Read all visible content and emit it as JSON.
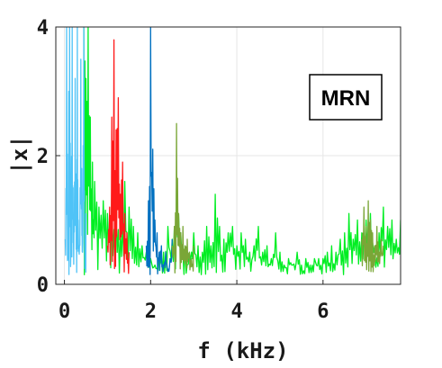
{
  "chart_data": {
    "type": "line",
    "title": "",
    "xlabel": "f (kHz)",
    "ylabel": "|x|",
    "xlim": [
      -0.2,
      7.8
    ],
    "ylim": [
      0,
      4
    ],
    "x_ticks": [
      0,
      2,
      4,
      6
    ],
    "y_ticks": [
      0,
      2,
      4
    ],
    "grid": true,
    "legend": "none",
    "annotation": "MRN",
    "series": [
      {
        "color": "#00ee22",
        "x": [
          0.45,
          0.5,
          0.55,
          0.6,
          0.65,
          0.7,
          0.8,
          0.9,
          1.0,
          1.1,
          1.2,
          1.3,
          1.4,
          1.5,
          1.6,
          1.7,
          1.8,
          1.9,
          2.0,
          2.1,
          2.2,
          2.3,
          2.4,
          2.5,
          2.6,
          2.7,
          2.8,
          2.9,
          3.0,
          3.1,
          3.2,
          3.3,
          3.4,
          3.5,
          3.6,
          3.7,
          3.8,
          3.9,
          4.0,
          4.1,
          4.2,
          4.3,
          4.4,
          4.5,
          4.6,
          4.7,
          4.8,
          4.9,
          5.0,
          5.1,
          5.2,
          5.3,
          5.4,
          5.5,
          5.6,
          5.7,
          5.8,
          5.9,
          6.0,
          6.1,
          6.2,
          6.3,
          6.4,
          6.5,
          6.6,
          6.7,
          6.8,
          6.9,
          7.0,
          7.1,
          7.2,
          7.3,
          7.4,
          7.5,
          7.6,
          7.7,
          7.8
        ],
        "values": [
          4.0,
          3.2,
          4.0,
          2.6,
          1.9,
          1.6,
          1.2,
          1.3,
          1.1,
          1.5,
          1.0,
          0.8,
          1.6,
          1.2,
          0.9,
          0.8,
          0.6,
          0.5,
          0.4,
          0.3,
          0.4,
          0.5,
          0.9,
          0.7,
          1.5,
          0.8,
          0.6,
          0.5,
          0.8,
          0.6,
          0.5,
          0.9,
          0.6,
          1.4,
          0.9,
          0.7,
          0.8,
          0.9,
          0.6,
          0.8,
          0.7,
          0.5,
          0.6,
          0.9,
          0.5,
          0.6,
          0.4,
          0.8,
          0.5,
          0.3,
          0.4,
          0.3,
          0.5,
          0.3,
          0.4,
          0.3,
          0.4,
          0.4,
          0.4,
          0.5,
          0.6,
          0.5,
          0.7,
          0.8,
          1.1,
          0.7,
          1.0,
          0.8,
          1.0,
          1.1,
          0.6,
          0.8,
          1.2,
          0.9,
          1.0,
          0.7,
          1.0
        ]
      },
      {
        "color": "#4fc3f7",
        "x": [
          0.02,
          0.05,
          0.08,
          0.1,
          0.12,
          0.15,
          0.18,
          0.2,
          0.22,
          0.25,
          0.28,
          0.3,
          0.32,
          0.35,
          0.38,
          0.4,
          0.42,
          0.45,
          0.48,
          0.5
        ],
        "values": [
          0.7,
          4.0,
          0.4,
          3.0,
          4.0,
          0.6,
          4.0,
          1.5,
          0.8,
          3.2,
          0.7,
          4.0,
          1.0,
          0.6,
          3.5,
          1.8,
          0.5,
          4.0,
          0.7,
          1.1
        ]
      },
      {
        "color": "#ff1a1a",
        "x": [
          1.0,
          1.05,
          1.1,
          1.15,
          1.2,
          1.25,
          1.3,
          1.35,
          1.4,
          1.45,
          1.5
        ],
        "values": [
          0.6,
          1.2,
          2.6,
          3.8,
          2.4,
          2.9,
          1.4,
          1.9,
          1.1,
          0.8,
          0.5
        ]
      },
      {
        "color": "#0070c0",
        "x": [
          1.9,
          1.95,
          2.0,
          2.05,
          2.1,
          2.15,
          2.2,
          2.25,
          2.3,
          2.35,
          2.4,
          2.45,
          2.5
        ],
        "values": [
          0.6,
          1.3,
          4.0,
          2.1,
          1.0,
          0.8,
          0.5,
          0.6,
          0.3,
          0.5,
          0.2,
          0.4,
          0.7
        ]
      },
      {
        "color": "#7aa637",
        "x": [
          2.5,
          2.55,
          2.6,
          2.65,
          2.7,
          2.75,
          2.8,
          2.85,
          2.9,
          2.95,
          3.0
        ],
        "values": [
          0.6,
          0.9,
          2.5,
          1.1,
          0.8,
          0.9,
          0.6,
          0.7,
          0.5,
          0.4,
          0.6
        ]
      },
      {
        "color": "#7aa637",
        "x": [
          6.9,
          6.95,
          7.0,
          7.05,
          7.1,
          7.15,
          7.2,
          7.25,
          7.3,
          7.35,
          7.4
        ],
        "values": [
          0.7,
          1.2,
          0.9,
          1.3,
          1.0,
          0.8,
          0.6,
          0.9,
          0.5,
          0.7,
          0.6
        ]
      }
    ]
  }
}
